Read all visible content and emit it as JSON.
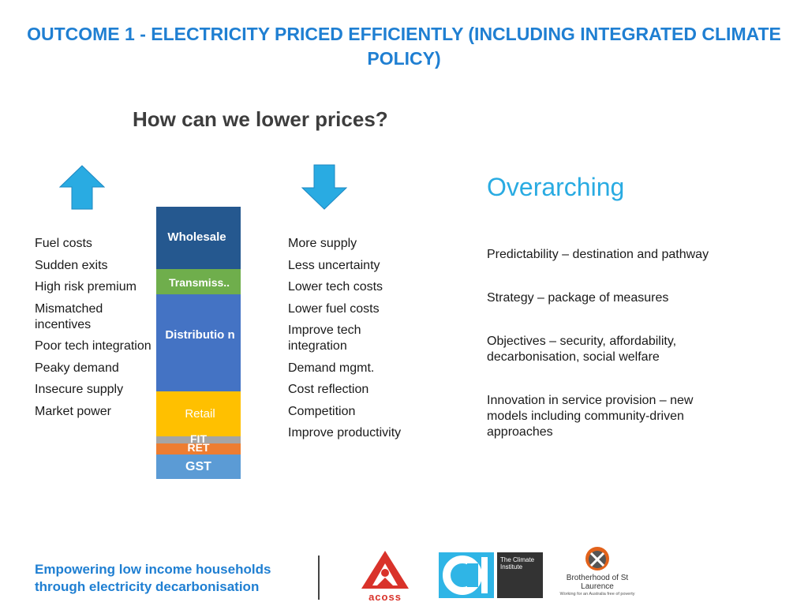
{
  "title": "OUTCOME 1 - ELECTRICITY PRICED EFFICIENTLY (INCLUDING INTEGRATED CLIMATE POLICY)",
  "subtitle": "How can we lower prices?",
  "icons": {
    "up": "arrow-up-icon",
    "down": "arrow-down-icon"
  },
  "colors": {
    "accent_blue": "#1f7fd2",
    "overarching": "#29abe2",
    "arrow": "#29abe2"
  },
  "left_list": [
    "Fuel costs",
    "Sudden exits",
    "High risk premium",
    "Mismatched incentives",
    "Poor tech integration",
    "Peaky demand",
    "Insecure supply",
    "Market power"
  ],
  "stack": {
    "wholesale": "Wholesale",
    "transmission": "Transmiss..",
    "distribution": "Distributio n",
    "retail": "Retail",
    "fit": "FIT",
    "ret": "RET",
    "gst": "GST"
  },
  "mid_list": [
    "More supply",
    "Less uncertainty",
    "Lower tech costs",
    "Lower fuel costs",
    "Improve tech integration",
    "Demand mgmt.",
    "Cost reflection",
    "Competition",
    "Improve productivity"
  ],
  "overarching": {
    "heading": "Overarching",
    "items": [
      "Predictability – destination and pathway",
      "Strategy – package of measures",
      "Objectives – security, affordability, decarbonisation, social welfare",
      "Innovation in service provision – new models including community-driven approaches"
    ]
  },
  "footer": {
    "text": "Empowering low income households through electricity decarbonisation",
    "acoss": "acoss",
    "ci": "The Climate Institute",
    "bsl": "Brotherhood of St Laurence",
    "bsl_tag": "Working for an Australia free of poverty"
  }
}
